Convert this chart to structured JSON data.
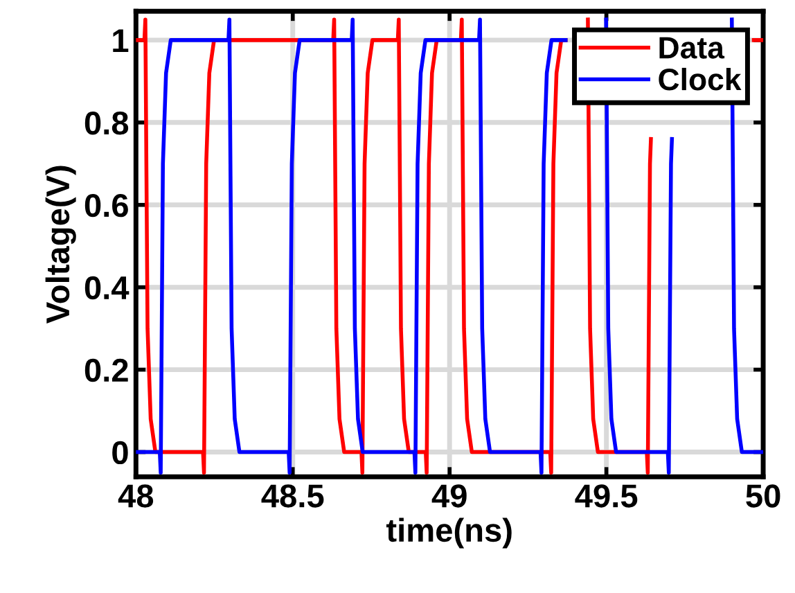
{
  "chart_data": {
    "type": "line",
    "xlabel": "time(ns)",
    "ylabel": "Voltage(V)",
    "xlim": [
      48,
      50
    ],
    "ylim": [
      -0.06,
      1.07
    ],
    "xticks": [
      48,
      48.5,
      49,
      49.5,
      50
    ],
    "yticks": [
      0,
      0.2,
      0.4,
      0.6,
      0.8,
      1
    ],
    "grid": true,
    "legend": "top right",
    "marker": "none",
    "line_style": "solid",
    "series": [
      {
        "name": "Data",
        "color": "#ff0000",
        "x": [
          48,
          48.027,
          48.03,
          48.037,
          48.047,
          48.062,
          48.214,
          48.217,
          48.224,
          48.234,
          48.249,
          48.629,
          48.632,
          48.639,
          48.649,
          48.664,
          48.719,
          48.722,
          48.729,
          48.739,
          48.754,
          48.835,
          48.838,
          48.845,
          48.855,
          48.87,
          48.924,
          48.927,
          48.934,
          48.944,
          48.959,
          49.036,
          49.039,
          49.046,
          49.056,
          49.071,
          49.321,
          49.324,
          49.331,
          49.341,
          49.356,
          49.37,
          49.438,
          49.441,
          49.448,
          49.458,
          49.473,
          49.629,
          49.632,
          49.639,
          49.642,
          49.649,
          49.664,
          49.97,
          50
        ],
        "values": [
          1,
          1,
          1.05,
          0.3,
          0.08,
          0,
          0,
          -0.05,
          0.7,
          0.92,
          1,
          1,
          1.05,
          0.3,
          0.08,
          0,
          0,
          -0.05,
          0.7,
          0.92,
          1,
          1,
          1.05,
          0.3,
          0.08,
          0,
          0,
          -0.05,
          0.7,
          0.92,
          1,
          1,
          1.05,
          0.3,
          0.08,
          0,
          0,
          -0.05,
          0.7,
          0.92,
          1,
          1,
          null,
          1.05,
          0.3,
          0.08,
          0,
          0,
          -0.05,
          0.7,
          0.76,
          null,
          null,
          1,
          1
        ]
      },
      {
        "name": "Clock",
        "color": "#0000ff",
        "x": [
          48,
          48.076,
          48.079,
          48.086,
          48.096,
          48.111,
          48.295,
          48.298,
          48.305,
          48.315,
          48.33,
          48.487,
          48.49,
          48.497,
          48.507,
          48.522,
          48.688,
          48.691,
          48.698,
          48.708,
          48.723,
          48.888,
          48.891,
          48.898,
          48.908,
          48.923,
          49.094,
          49.097,
          49.104,
          49.114,
          49.129,
          49.29,
          49.293,
          49.3,
          49.31,
          49.325,
          49.37,
          49.496,
          49.499,
          49.506,
          49.516,
          49.531,
          49.696,
          49.699,
          49.706,
          49.709,
          49.716,
          49.731,
          49.897,
          49.9,
          49.907,
          49.917,
          49.932,
          50
        ],
        "values": [
          0,
          0,
          -0.05,
          0.7,
          0.92,
          1,
          1,
          1.05,
          0.3,
          0.08,
          0,
          0,
          -0.05,
          0.7,
          0.92,
          1,
          1,
          1.05,
          0.3,
          0.08,
          0,
          0,
          -0.05,
          0.7,
          0.92,
          1,
          1,
          1.05,
          0.3,
          0.08,
          0,
          0,
          -0.05,
          0.7,
          0.92,
          1,
          1,
          null,
          1.05,
          0.3,
          0.08,
          0,
          0,
          -0.05,
          0.7,
          0.76,
          null,
          null,
          null,
          1.05,
          0.3,
          0.08,
          0,
          0
        ]
      }
    ]
  }
}
